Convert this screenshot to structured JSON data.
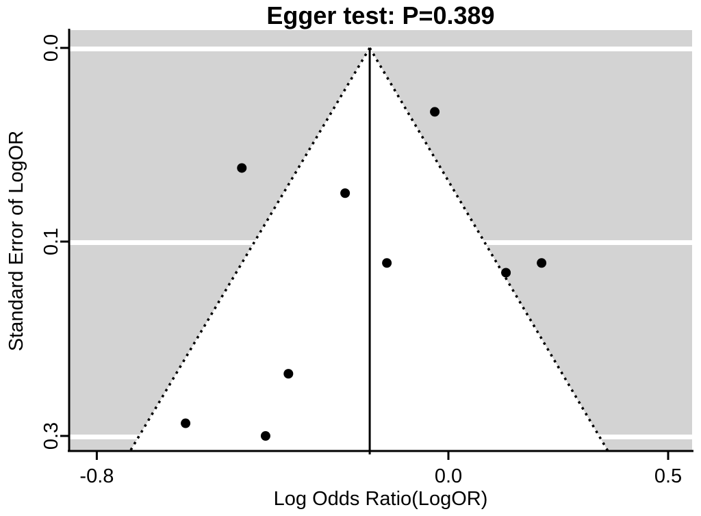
{
  "chart_data": {
    "type": "scatter",
    "subtype": "funnel-plot",
    "title": "Egger test: P=0.389",
    "xlabel": "Log Odds Ratio(LogOR)",
    "ylabel": "Standard Error of LogOR",
    "x_ticks": [
      -0.8,
      0.0,
      0.5
    ],
    "x_tick_labels": [
      "-0.8",
      "0.0",
      "0.5"
    ],
    "y_ticks": [
      0.0,
      0.1,
      0.3
    ],
    "y_tick_labels": [
      "0.0",
      "0.1",
      "0.3"
    ],
    "y_scale_note": "y tick values 0.0, 0.1, 0.3 are rendered at equal pixel spacing (non-linear axis)",
    "xlim": [
      -0.863,
      0.555
    ],
    "ylim": [
      0.0,
      0.317
    ],
    "grid": "white horizontal bands at each y tick on gray background",
    "legend": "none",
    "points": [
      {
        "log_or": -0.47,
        "se": 0.062
      },
      {
        "log_or": -0.235,
        "se": 0.075
      },
      {
        "log_or": -0.031,
        "se": 0.033
      },
      {
        "log_or": -0.14,
        "se": 0.122
      },
      {
        "log_or": 0.131,
        "se": 0.132
      },
      {
        "log_or": 0.212,
        "se": 0.122
      },
      {
        "log_or": -0.364,
        "se": 0.236
      },
      {
        "log_or": -0.598,
        "se": 0.287
      },
      {
        "log_or": -0.416,
        "se": 0.3
      }
    ],
    "center_line_x": -0.179,
    "funnel": {
      "apex_x": -0.179,
      "apex_se": 0.0,
      "base_left_x": -0.724,
      "base_right_x": 0.363,
      "boundary_style": "dotted"
    },
    "colors": {
      "plot_background": "#d3d3d3",
      "funnel_fill": "#ffffff",
      "gridline": "#ffffff",
      "point": "#000000",
      "line": "#000000",
      "text": "#000000"
    }
  }
}
